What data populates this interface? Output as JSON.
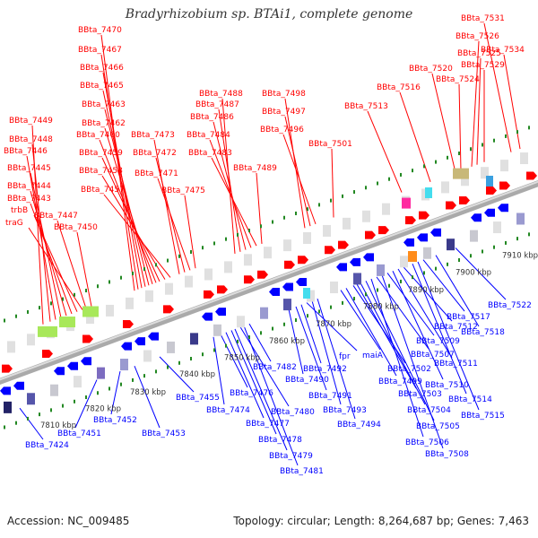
{
  "title": "Bradyrhizobium sp. BTAi1, complete genome",
  "footer": {
    "accession": "Accession: NC_009485",
    "info": "Topology: circular; Length: 8,264,687 bp; Genes: 7,463"
  },
  "colors": {
    "forward_gene": "#ff0000",
    "reverse_gene": "#0000ff",
    "backbone": "#888888",
    "tick": "#228822"
  },
  "ticks": [
    "7810 kbp",
    "7820 kbp",
    "7830 kbp",
    "7840 kbp",
    "7850 kbp",
    "7860 kbp",
    "7870 kbp",
    "7880 kbp",
    "7890 kbp",
    "7900 kbp",
    "7910 kbp"
  ],
  "forward_labels": [
    "BBta_7449",
    "BBta_7448",
    "BBta_7446",
    "BBta_7445",
    "BBta_7444",
    "BBta_7443",
    "trbB",
    "traG",
    "BBta_7447",
    "BBta_7450",
    "BBta_7470",
    "BBta_7467",
    "BBta_7466",
    "BBta_7465",
    "BBta_7463",
    "BBta_7462",
    "BBta_7460",
    "BBta_7459",
    "BBta_7458",
    "BBta_7457",
    "BBta_7473",
    "BBta_7472",
    "BBta_7471",
    "BBta_7475",
    "BBta_7488",
    "BBta_7487",
    "BBta_7486",
    "BBta_7484",
    "BBta_7483",
    "BBta_7489",
    "BBta_7498",
    "BBta_7497",
    "BBta_7496",
    "BBta_7501",
    "BBta_7513",
    "BBta_7516",
    "BBta_7520",
    "BBta_7524",
    "BBta_7526",
    "BBta_7525",
    "BBta_7529",
    "BBta_7531",
    "BBta_7534"
  ],
  "reverse_labels": [
    "BBta_7424",
    "BBta_7451",
    "BBta_7452",
    "BBta_7453",
    "BBta_7455",
    "BBta_7474",
    "BBta_7476",
    "BBta_7477",
    "BBta_7478",
    "BBta_7479",
    "BBta_7480",
    "BBta_7481",
    "BBta_7482",
    "BBta_7490",
    "BBta_7491",
    "BBta_7492",
    "fpr",
    "BBta_7493",
    "BBta_7494",
    "maiA",
    "BBta_7499",
    "BBta_7502",
    "BBta_7503",
    "BBta_7504",
    "BBta_7505",
    "BBta_7506",
    "BBta_7507",
    "BBta_7508",
    "BBta_7509",
    "BBta_7510",
    "BBta_7511",
    "BBta_7512",
    "BBta_7514",
    "BBta_7515",
    "BBta_7517",
    "BBta_7518",
    "BBta_7522"
  ]
}
